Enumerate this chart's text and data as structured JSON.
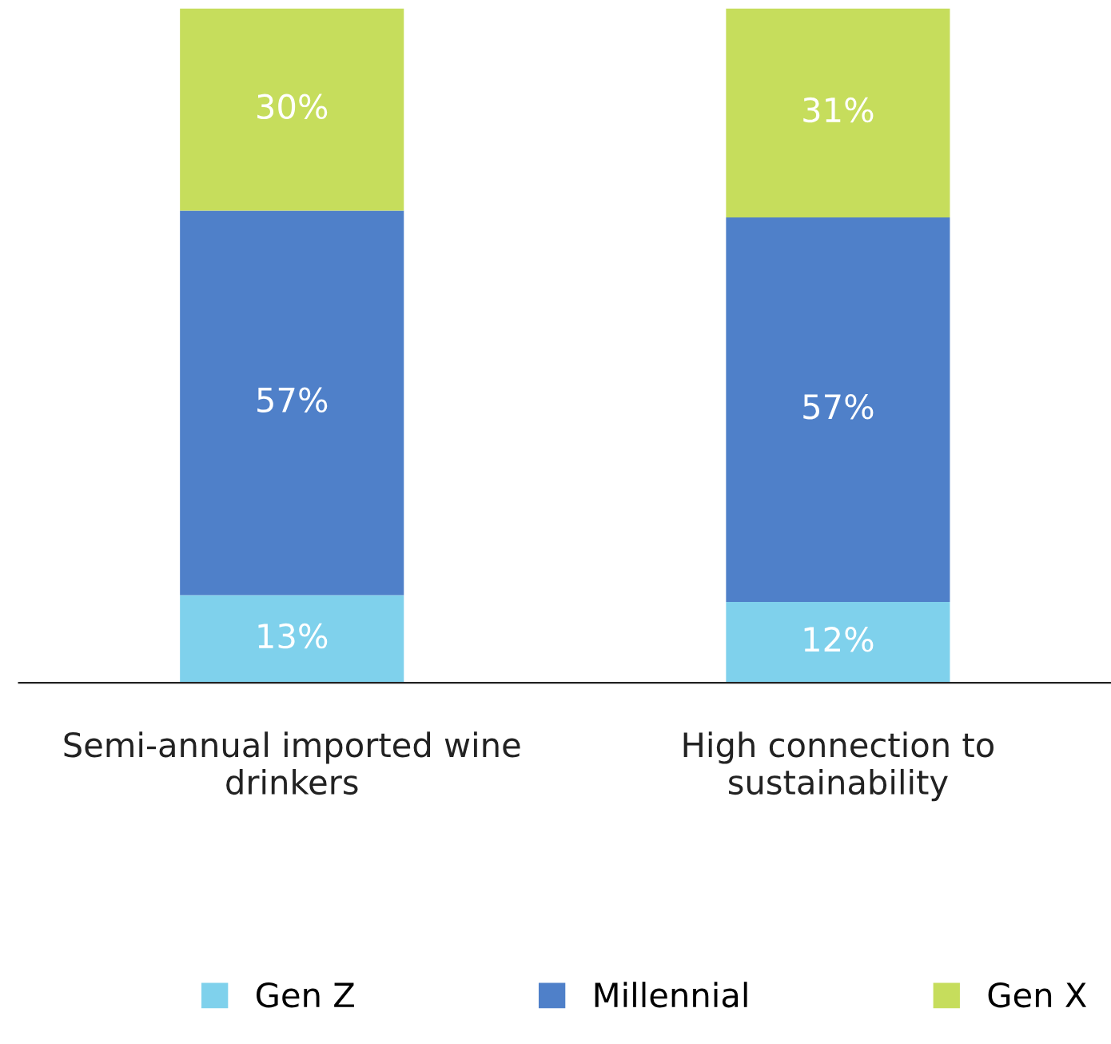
{
  "chart_data": {
    "type": "bar",
    "stacked": true,
    "categories": [
      "Semi-annual imported wine drinkers",
      "High connection to sustainability"
    ],
    "series": [
      {
        "name": "Gen Z",
        "color": "#7fd1ec",
        "values": [
          13,
          12
        ],
        "value_labels": [
          "13%",
          "12%"
        ]
      },
      {
        "name": "Millennial",
        "color": "#4f80c9",
        "values": [
          57,
          57
        ],
        "value_labels": [
          "57%",
          "57%"
        ]
      },
      {
        "name": "Gen X",
        "color": "#c6dd5c",
        "values": [
          30,
          31
        ],
        "value_labels": [
          "30%",
          "31%"
        ]
      }
    ],
    "legend": "bottom",
    "grid": false
  }
}
